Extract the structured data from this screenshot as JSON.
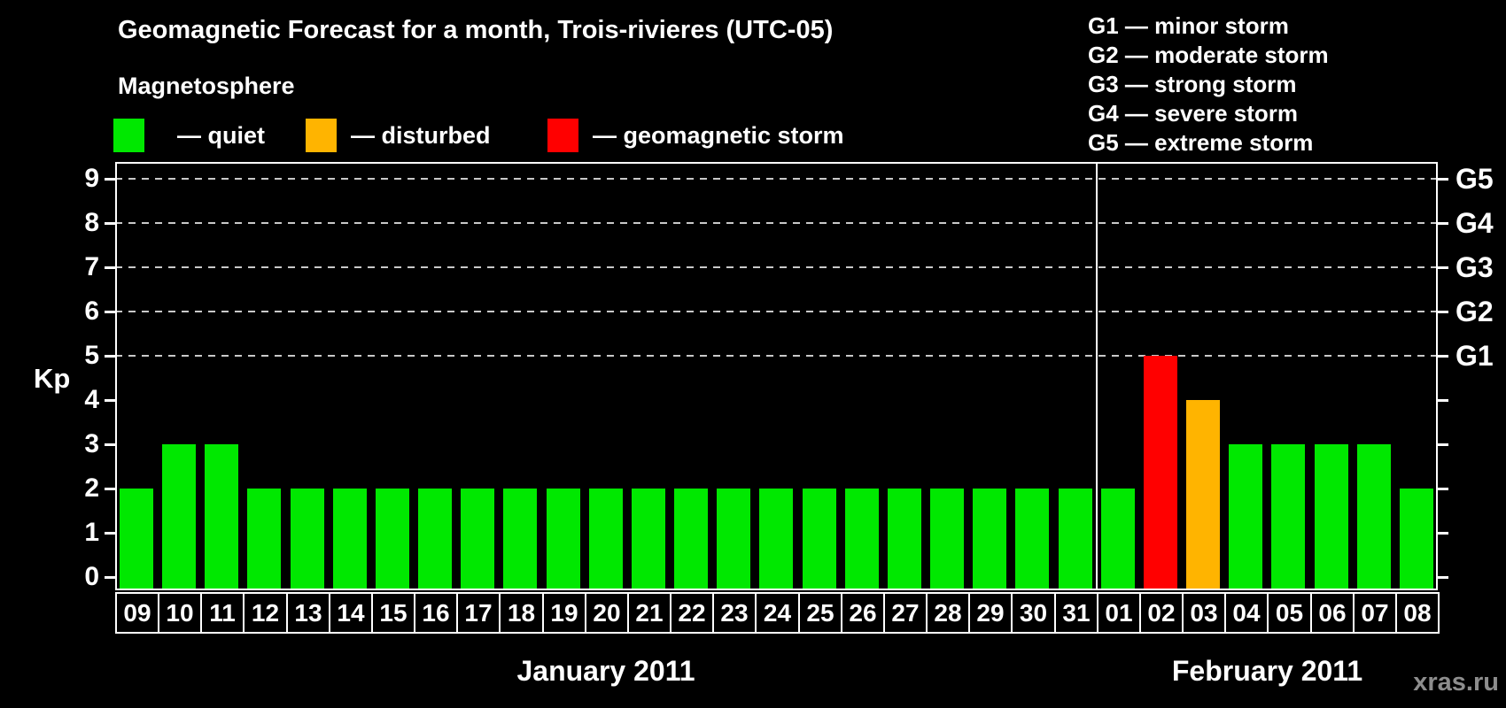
{
  "title": "Geomagnetic Forecast for a month, Trois-rivieres (UTC-05)",
  "legend": {
    "heading": "Magnetosphere",
    "items": [
      {
        "key": "quiet",
        "label": "— quiet",
        "color": "#00e800"
      },
      {
        "key": "disturbed",
        "label": "— disturbed",
        "color": "#ffb400"
      },
      {
        "key": "storm",
        "label": "— geomagnetic storm",
        "color": "#ff0000"
      }
    ]
  },
  "g_legend": [
    "G1 — minor storm",
    "G2 — moderate storm",
    "G3 — strong storm",
    "G4 — severe storm",
    "G5 — extreme storm"
  ],
  "watermark": "xras.ru",
  "chart_data": {
    "type": "bar",
    "title": "Geomagnetic Forecast for a month, Trois-rivieres (UTC-05)",
    "xlabel": "",
    "ylabel": "Kp",
    "ylim": [
      0,
      9
    ],
    "y_ticks": [
      0,
      1,
      2,
      3,
      4,
      5,
      6,
      7,
      8,
      9
    ],
    "gridline_levels": [
      5,
      6,
      7,
      8,
      9
    ],
    "grid": "dashed horizontal at G-storm levels only",
    "legend_position": "top",
    "categories": [
      "09",
      "10",
      "11",
      "12",
      "13",
      "14",
      "15",
      "16",
      "17",
      "18",
      "19",
      "20",
      "21",
      "22",
      "23",
      "24",
      "25",
      "26",
      "27",
      "28",
      "29",
      "30",
      "31",
      "01",
      "02",
      "03",
      "04",
      "05",
      "06",
      "07",
      "08"
    ],
    "values": [
      2,
      3,
      3,
      2,
      2,
      2,
      2,
      2,
      2,
      2,
      2,
      2,
      2,
      2,
      2,
      2,
      2,
      2,
      2,
      2,
      2,
      2,
      2,
      2,
      5,
      4,
      3,
      3,
      3,
      3,
      2
    ],
    "statuses": [
      "quiet",
      "quiet",
      "quiet",
      "quiet",
      "quiet",
      "quiet",
      "quiet",
      "quiet",
      "quiet",
      "quiet",
      "quiet",
      "quiet",
      "quiet",
      "quiet",
      "quiet",
      "quiet",
      "quiet",
      "quiet",
      "quiet",
      "quiet",
      "quiet",
      "quiet",
      "quiet",
      "quiet",
      "storm",
      "disturbed",
      "quiet",
      "quiet",
      "quiet",
      "quiet",
      "quiet"
    ],
    "status_colors": {
      "quiet": "#00e800",
      "disturbed": "#ffb400",
      "storm": "#ff0000"
    },
    "months": [
      {
        "label": "January 2011",
        "days": 23
      },
      {
        "label": "February 2011",
        "days": 8
      }
    ],
    "right_axis": [
      {
        "kp": 5,
        "label": "G1"
      },
      {
        "kp": 6,
        "label": "G2"
      },
      {
        "kp": 7,
        "label": "G3"
      },
      {
        "kp": 8,
        "label": "G4"
      },
      {
        "kp": 9,
        "label": "G5"
      }
    ]
  }
}
